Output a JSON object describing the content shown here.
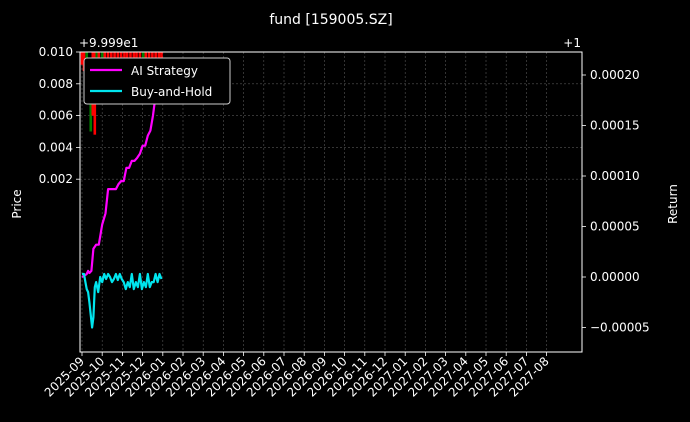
{
  "chart_data": {
    "type": "line",
    "title": "fund [159005.SZ]",
    "ylabel_left": "Price",
    "ylabel_right": "Return",
    "left_offset_label": "+9.999e1",
    "right_offset_label": "+1",
    "x_tick_labels": [
      "2025-09",
      "2025-10",
      "2025-11",
      "2025-12",
      "2026-01",
      "2026-02",
      "2026-03",
      "2026-04",
      "2026-05",
      "2026-06",
      "2026-07",
      "2026-08",
      "2026-09",
      "2026-10",
      "2026-11",
      "2026-12",
      "2027-01",
      "2027-02",
      "2027-03",
      "2027-04",
      "2027-05",
      "2027-06",
      "2027-07",
      "2027-08"
    ],
    "y_left_ticks": [
      "0.002",
      "0.004",
      "0.006",
      "0.008",
      "0.010"
    ],
    "y_right_ticks": [
      "−0.00005",
      "0.00000",
      "0.00005",
      "0.00010",
      "0.00015",
      "0.00020"
    ],
    "grid": true,
    "legend_position": "upper-left",
    "colors": {
      "background": "#000000",
      "strategy": "#ff00ff",
      "buyhold": "#00e5ee",
      "candle_up": "#ff0000",
      "candle_down": "#008000",
      "grid": "#555555"
    },
    "series": [
      {
        "name": "AI Strategy",
        "x": [
          "2025-09-01",
          "2025-09-04",
          "2025-09-08",
          "2025-09-10",
          "2025-09-12",
          "2025-09-15",
          "2025-09-18",
          "2025-09-22",
          "2025-09-26",
          "2025-10-01",
          "2025-10-06",
          "2025-10-10",
          "2025-10-14",
          "2025-10-18",
          "2025-10-22",
          "2025-10-26",
          "2025-10-30",
          "2025-11-03",
          "2025-11-07",
          "2025-11-11",
          "2025-11-15",
          "2025-11-19",
          "2025-11-23",
          "2025-11-27",
          "2025-12-01",
          "2025-12-05",
          "2025-12-09",
          "2025-12-13",
          "2025-12-17",
          "2025-12-21",
          "2025-12-25",
          "2025-12-29"
        ],
        "values": [
          0.0,
          1e-06,
          3e-06,
          6e-06,
          4e-06,
          6e-06,
          2.8e-05,
          3.2e-05,
          3.2e-05,
          5.2e-05,
          6.3e-05,
          8.7e-05,
          8.7e-05,
          8.7e-05,
          8.7e-05,
          9.2e-05,
          9.5e-05,
          9.5e-05,
          0.000108,
          0.000108,
          0.000115,
          0.000115,
          0.000118,
          0.000122,
          0.00013,
          0.00013,
          0.00014,
          0.000145,
          0.00016,
          0.00018,
          0.000195,
          0.000205
        ]
      },
      {
        "name": "Buy-and-Hold",
        "x": [
          "2025-09-01",
          "2025-09-04",
          "2025-09-06",
          "2025-09-08",
          "2025-09-10",
          "2025-09-12",
          "2025-09-14",
          "2025-09-16",
          "2025-09-18",
          "2025-09-20",
          "2025-09-22",
          "2025-09-25",
          "2025-09-28",
          "2025-10-01",
          "2025-10-04",
          "2025-10-07",
          "2025-10-10",
          "2025-10-13",
          "2025-10-16",
          "2025-10-19",
          "2025-10-22",
          "2025-10-25",
          "2025-10-28",
          "2025-10-31",
          "2025-11-03",
          "2025-11-06",
          "2025-11-09",
          "2025-11-12",
          "2025-11-15",
          "2025-11-18",
          "2025-11-21",
          "2025-11-24",
          "2025-11-27",
          "2025-11-30",
          "2025-12-03",
          "2025-12-06",
          "2025-12-09",
          "2025-12-12",
          "2025-12-15",
          "2025-12-18",
          "2025-12-21",
          "2025-12-24",
          "2025-12-27",
          "2025-12-30"
        ],
        "values": [
          3e-06,
          3e-06,
          -5e-06,
          -1.2e-05,
          -1.5e-05,
          -2.5e-05,
          -3.8e-05,
          -5e-05,
          -4e-05,
          -1e-05,
          -5e-06,
          -1.5e-05,
          0.0,
          -5e-06,
          3e-06,
          -2e-06,
          3e-06,
          0.0,
          -5e-06,
          -2e-06,
          3e-06,
          -3e-06,
          3e-06,
          -2e-06,
          -5e-06,
          -1.2e-05,
          -5e-06,
          -1e-05,
          3e-06,
          -1.2e-05,
          -5e-06,
          -1e-05,
          3e-06,
          -1.2e-05,
          -5e-06,
          -1e-05,
          3e-06,
          -1e-05,
          -5e-06,
          -5e-06,
          3e-06,
          -5e-06,
          3e-06,
          -2e-06
        ]
      }
    ],
    "candles": [
      {
        "x": "2025-09-01",
        "low": 0.0092,
        "high": 0.01,
        "up": true
      },
      {
        "x": "2025-09-04",
        "low": 0.0088,
        "high": 0.01,
        "up": true
      },
      {
        "x": "2025-09-08",
        "low": 0.008,
        "high": 0.01,
        "up": false
      },
      {
        "x": "2025-09-11",
        "low": 0.0069,
        "high": 0.0095,
        "up": true
      },
      {
        "x": "2025-09-14",
        "low": 0.005,
        "high": 0.009,
        "up": false
      },
      {
        "x": "2025-09-17",
        "low": 0.006,
        "high": 0.01,
        "up": true
      },
      {
        "x": "2025-09-20",
        "low": 0.0048,
        "high": 0.01,
        "up": true
      },
      {
        "x": "2025-09-23",
        "low": 0.008,
        "high": 0.01,
        "up": false
      },
      {
        "x": "2025-09-26",
        "low": 0.0068,
        "high": 0.01,
        "up": true
      },
      {
        "x": "2025-10-01",
        "low": 0.0072,
        "high": 0.01,
        "up": false
      },
      {
        "x": "2025-10-05",
        "low": 0.0086,
        "high": 0.01,
        "up": true
      },
      {
        "x": "2025-10-10",
        "low": 0.0095,
        "high": 0.01,
        "up": true
      },
      {
        "x": "2025-10-15",
        "low": 0.009,
        "high": 0.01,
        "up": true
      },
      {
        "x": "2025-10-20",
        "low": 0.0092,
        "high": 0.01,
        "up": true
      },
      {
        "x": "2025-10-25",
        "low": 0.007,
        "high": 0.01,
        "up": true
      },
      {
        "x": "2025-10-30",
        "low": 0.009,
        "high": 0.01,
        "up": true
      },
      {
        "x": "2025-11-04",
        "low": 0.0092,
        "high": 0.01,
        "up": true
      },
      {
        "x": "2025-11-08",
        "low": 0.0088,
        "high": 0.01,
        "up": true
      },
      {
        "x": "2025-11-13",
        "low": 0.009,
        "high": 0.01,
        "up": true
      },
      {
        "x": "2025-11-18",
        "low": 0.0086,
        "high": 0.01,
        "up": true
      },
      {
        "x": "2025-11-22",
        "low": 0.0068,
        "high": 0.01,
        "up": true
      },
      {
        "x": "2025-11-27",
        "low": 0.009,
        "high": 0.01,
        "up": true
      },
      {
        "x": "2025-12-02",
        "low": 0.0085,
        "high": 0.01,
        "up": false
      },
      {
        "x": "2025-12-06",
        "low": 0.0092,
        "high": 0.01,
        "up": true
      },
      {
        "x": "2025-12-11",
        "low": 0.0088,
        "high": 0.01,
        "up": true
      },
      {
        "x": "2025-12-16",
        "low": 0.0094,
        "high": 0.01,
        "up": true
      },
      {
        "x": "2025-12-21",
        "low": 0.0092,
        "high": 0.01,
        "up": true
      },
      {
        "x": "2025-12-26",
        "low": 0.0095,
        "high": 0.01,
        "up": true
      },
      {
        "x": "2025-12-30",
        "low": 0.0096,
        "high": 0.01,
        "up": true
      }
    ]
  }
}
